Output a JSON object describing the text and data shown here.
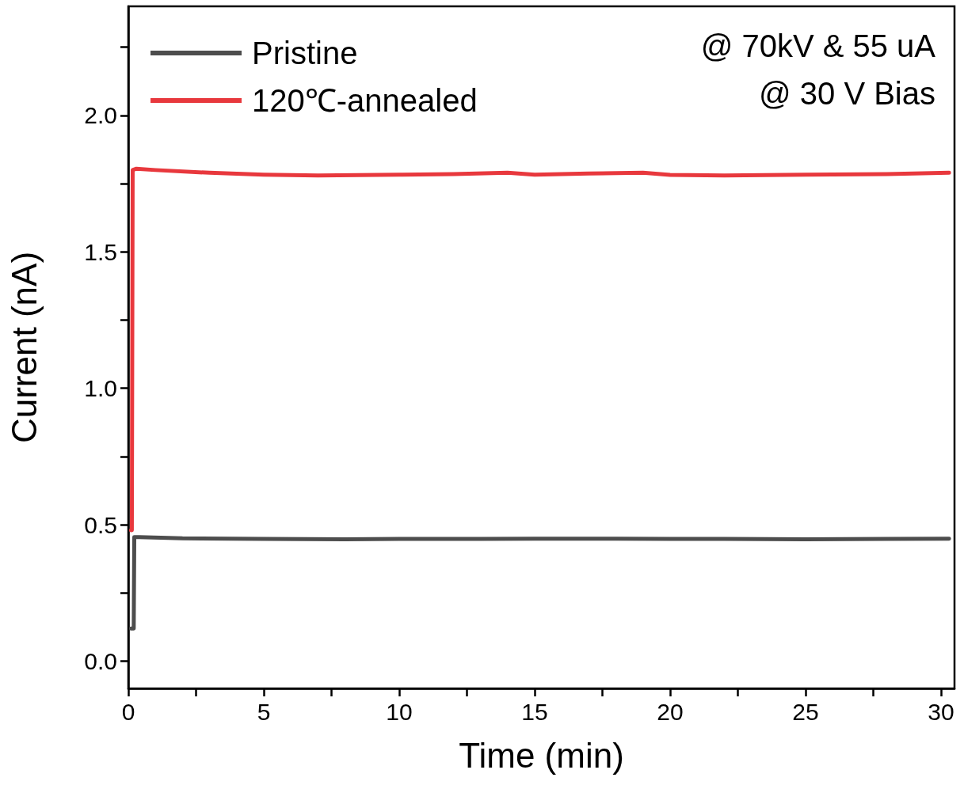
{
  "chart_data": {
    "type": "line",
    "xlabel": "Time (min)",
    "ylabel": "Current (nA)",
    "annotations": [
      "@ 70kV & 55 uA",
      "@ 30 V Bias"
    ],
    "xlim": [
      0,
      30.5
    ],
    "xticks": [
      0,
      {
        "value": 2.5,
        "label": null
      },
      5,
      {
        "value": 7.5,
        "label": null
      },
      10,
      {
        "value": 12.5,
        "label": null
      },
      15,
      {
        "value": 17.5,
        "label": null
      },
      20,
      {
        "value": 22.5,
        "label": null
      },
      25,
      {
        "value": 27.5,
        "label": null
      },
      30
    ],
    "ylim": [
      -0.1,
      2.4
    ],
    "yticks": [
      {
        "value": 0,
        "label": "0.0"
      },
      {
        "value": 0.25,
        "label": null
      },
      0.5,
      {
        "value": 0.75,
        "label": null
      },
      {
        "value": 1,
        "label": "1.0"
      },
      {
        "value": 1.25,
        "label": null
      },
      1.5,
      {
        "value": 1.75,
        "label": null
      },
      {
        "value": 2,
        "label": "2.0"
      },
      {
        "value": 2.25,
        "label": null
      }
    ],
    "grid": false,
    "legend": "top left",
    "marker": "none",
    "line_style": "solid",
    "series": [
      {
        "name": "Pristine",
        "color": "#4d4d4d",
        "x": [
          0.1,
          0.2,
          0.22,
          0.4,
          2,
          5,
          8,
          10,
          13,
          15,
          18,
          20,
          22,
          25,
          28,
          30.3
        ],
        "values": [
          0.12,
          0.12,
          0.455,
          0.455,
          0.45,
          0.448,
          0.447,
          0.448,
          0.448,
          0.449,
          0.449,
          0.448,
          0.448,
          0.447,
          0.448,
          0.449
        ]
      },
      {
        "name": "120℃-annealed",
        "color": "#e8383d",
        "x": [
          0.1,
          0.13,
          0.16,
          0.3,
          1,
          3,
          5,
          7,
          10,
          12,
          14,
          15,
          17,
          19,
          20,
          22,
          25,
          28,
          30.3
        ],
        "values": [
          0.48,
          0.48,
          1.8,
          1.805,
          1.8,
          1.79,
          1.783,
          1.78,
          1.783,
          1.785,
          1.79,
          1.783,
          1.787,
          1.79,
          1.782,
          1.78,
          1.783,
          1.785,
          1.79
        ]
      }
    ]
  }
}
